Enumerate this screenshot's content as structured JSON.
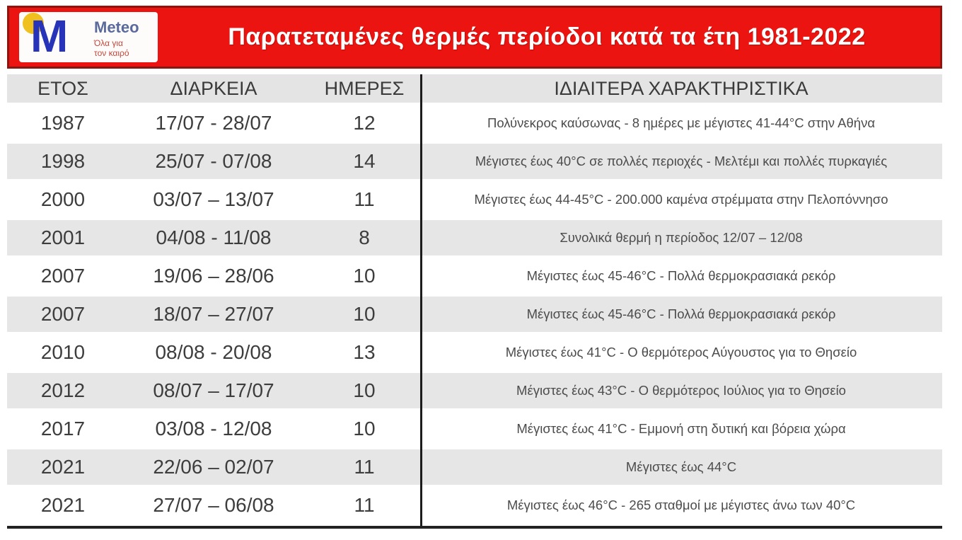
{
  "logo": {
    "monogram": "M",
    "brand": "Meteo",
    "tagline_line1": "Όλα για",
    "tagline_line2": "τον καιρό"
  },
  "banner": {
    "title": "Παρατεταμένες θερμές περίοδοι κατά τα έτη 1981-2022"
  },
  "colors": {
    "banner_red": "#ec1410",
    "banner_border_maroon": "#8b1712",
    "logo_blue": "#2733b8",
    "logo_dot_yellow": "#efc01e",
    "row_stripe_gray": "#e7e6e6",
    "divider_black": "#1c1c1c"
  },
  "chart_data": {
    "type": "table",
    "title": "Παρατεταμένες θερμές περίοδοι κατά τα έτη 1981-2022",
    "columns": [
      "ΕΤΟΣ",
      "ΔΙΑΡΚΕΙΑ",
      "ΗΜΕΡΕΣ",
      "ΙΔΙΑΙΤΕΡΑ ΧΑΡΑΚΤΗΡΙΣΤΙΚΑ"
    ],
    "rows": [
      [
        "1987",
        "17/07 - 28/07",
        "12",
        "Πολύνεκρος καύσωνας - 8 ημέρες με μέγιστες 41-44°C στην Αθήνα"
      ],
      [
        "1998",
        "25/07 - 07/08",
        "14",
        "Μέγιστες έως 40°C σε πολλές περιοχές - Μελτέμι και πολλές πυρκαγιές"
      ],
      [
        "2000",
        "03/07 – 13/07",
        "11",
        "Μέγιστες έως 44-45°C - 200.000 καμένα στρέμματα στην Πελοπόννησο"
      ],
      [
        "2001",
        "04/08 - 11/08",
        "8",
        "Συνολικά θερμή η περίοδος 12/07 – 12/08"
      ],
      [
        "2007",
        "19/06 – 28/06",
        "10",
        "Μέγιστες έως 45-46°C - Πολλά θερμοκρασιακά ρεκόρ"
      ],
      [
        "2007",
        "18/07 – 27/07",
        "10",
        "Μέγιστες έως 45-46°C - Πολλά θερμοκρασιακά ρεκόρ"
      ],
      [
        "2010",
        "08/08 - 20/08",
        "13",
        "Μέγιστες έως 41°C - Ο θερμότερος Αύγουστος για το Θησείο"
      ],
      [
        "2012",
        "08/07 – 17/07",
        "10",
        "Μέγιστες έως 43°C - Ο θερμότερος Ιούλιος για το Θησείο"
      ],
      [
        "2017",
        "03/08 - 12/08",
        "10",
        "Μέγιστες έως 41°C - Εμμονή στη δυτική και βόρεια χώρα"
      ],
      [
        "2021",
        "22/06 – 02/07",
        "11",
        "Μέγιστες έως 44°C"
      ],
      [
        "2021",
        "27/07 – 06/08",
        "11",
        "Μέγιστες έως 46°C - 265 σταθμοί με μέγιστες άνω των 40°C"
      ]
    ]
  }
}
